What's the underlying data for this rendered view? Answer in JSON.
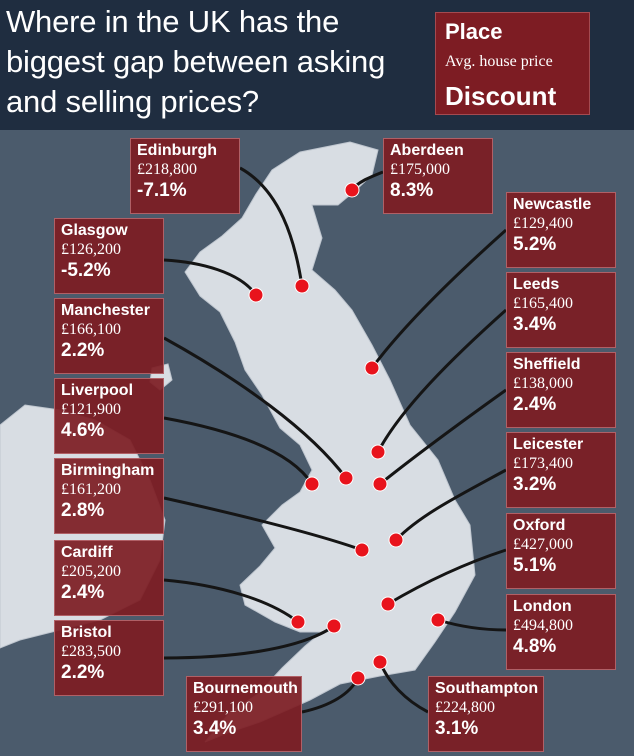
{
  "title": "Where in the UK has the biggest gap between asking and selling prices?",
  "legend": {
    "place": "Place",
    "avg_price": "Avg. house price",
    "discount": "Discount"
  },
  "colors": {
    "header_bg": "#1f2d40",
    "box_bg": "#7d1c23",
    "sea": "#4b5b6c",
    "land": "#d8dde3",
    "marker": "#e8131c",
    "connector": "#151515"
  },
  "cities": [
    {
      "id": "edinburgh",
      "place": "Edinburgh",
      "price": "£218,800",
      "discount": "-7.1%"
    },
    {
      "id": "aberdeen",
      "place": "Aberdeen",
      "price": "£175,000",
      "discount": "8.3%"
    },
    {
      "id": "glasgow",
      "place": "Glasgow",
      "price": "£126,200",
      "discount": "-5.2%"
    },
    {
      "id": "newcastle",
      "place": "Newcastle",
      "price": "£129,400",
      "discount": "5.2%"
    },
    {
      "id": "manchester",
      "place": "Manchester",
      "price": "£166,100",
      "discount": "2.2%"
    },
    {
      "id": "leeds",
      "place": "Leeds",
      "price": "£165,400",
      "discount": "3.4%"
    },
    {
      "id": "liverpool",
      "place": "Liverpool",
      "price": "£121,900",
      "discount": "4.6%"
    },
    {
      "id": "sheffield",
      "place": "Sheffield",
      "price": "£138,000",
      "discount": "2.4%"
    },
    {
      "id": "birmingham",
      "place": "Birmingham",
      "price": "£161,200",
      "discount": "2.8%"
    },
    {
      "id": "leicester",
      "place": "Leicester",
      "price": "£173,400",
      "discount": "3.2%"
    },
    {
      "id": "cardiff",
      "place": "Cardiff",
      "price": "£205,200",
      "discount": "2.4%"
    },
    {
      "id": "oxford",
      "place": "Oxford",
      "price": "£427,000",
      "discount": "5.1%"
    },
    {
      "id": "bristol",
      "place": "Bristol",
      "price": "£283,500",
      "discount": "2.2%"
    },
    {
      "id": "london",
      "place": "London",
      "price": "£494,800",
      "discount": "4.8%"
    },
    {
      "id": "bournemouth",
      "place": "Bournemouth",
      "price": "£291,100",
      "discount": "3.4%"
    },
    {
      "id": "southampton",
      "place": "Southampton",
      "price": "£224,800",
      "discount": "3.1%"
    }
  ]
}
